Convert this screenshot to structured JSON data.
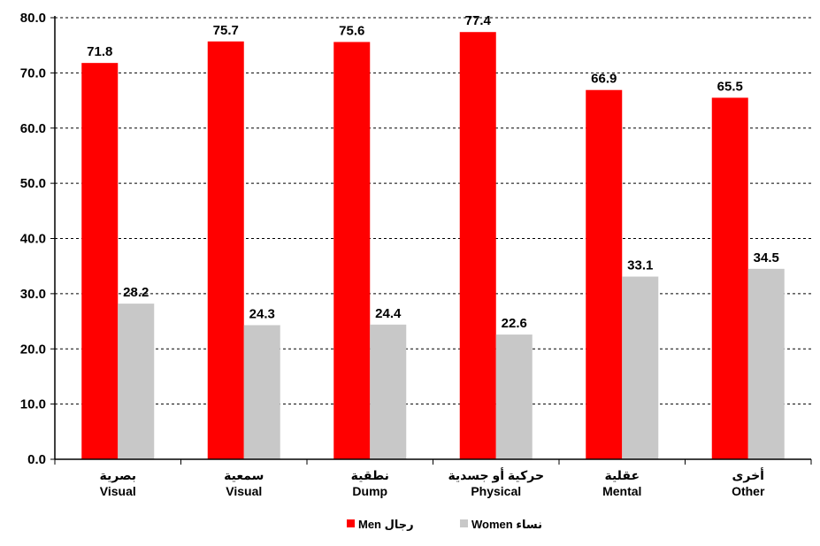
{
  "chart_data": {
    "type": "bar",
    "categories": [
      {
        "ar": "بصرية",
        "en": "Visual"
      },
      {
        "ar": "سمعية",
        "en": "Visual"
      },
      {
        "ar": "نطقية",
        "en": "Dump"
      },
      {
        "ar": "حركية أو جسدية",
        "en": "Physical"
      },
      {
        "ar": "عقلية",
        "en": "Mental"
      },
      {
        "ar": "أخرى",
        "en": "Other"
      }
    ],
    "series": [
      {
        "name": "Men رجال",
        "color": "#ff0000",
        "values": [
          71.8,
          75.7,
          75.6,
          77.4,
          66.9,
          65.5
        ]
      },
      {
        "name": "Women نساء",
        "color": "#c8c8c8",
        "values": [
          28.2,
          24.3,
          24.4,
          22.6,
          33.1,
          34.5
        ]
      }
    ],
    "ylim": [
      0,
      80
    ],
    "yticks": [
      "0.0",
      "10.0",
      "20.0",
      "30.0",
      "40.0",
      "50.0",
      "60.0",
      "70.0",
      "80.0"
    ],
    "grid": "horizontal dashed",
    "legend_position": "bottom-center",
    "title": "",
    "xlabel": "",
    "ylabel": ""
  }
}
